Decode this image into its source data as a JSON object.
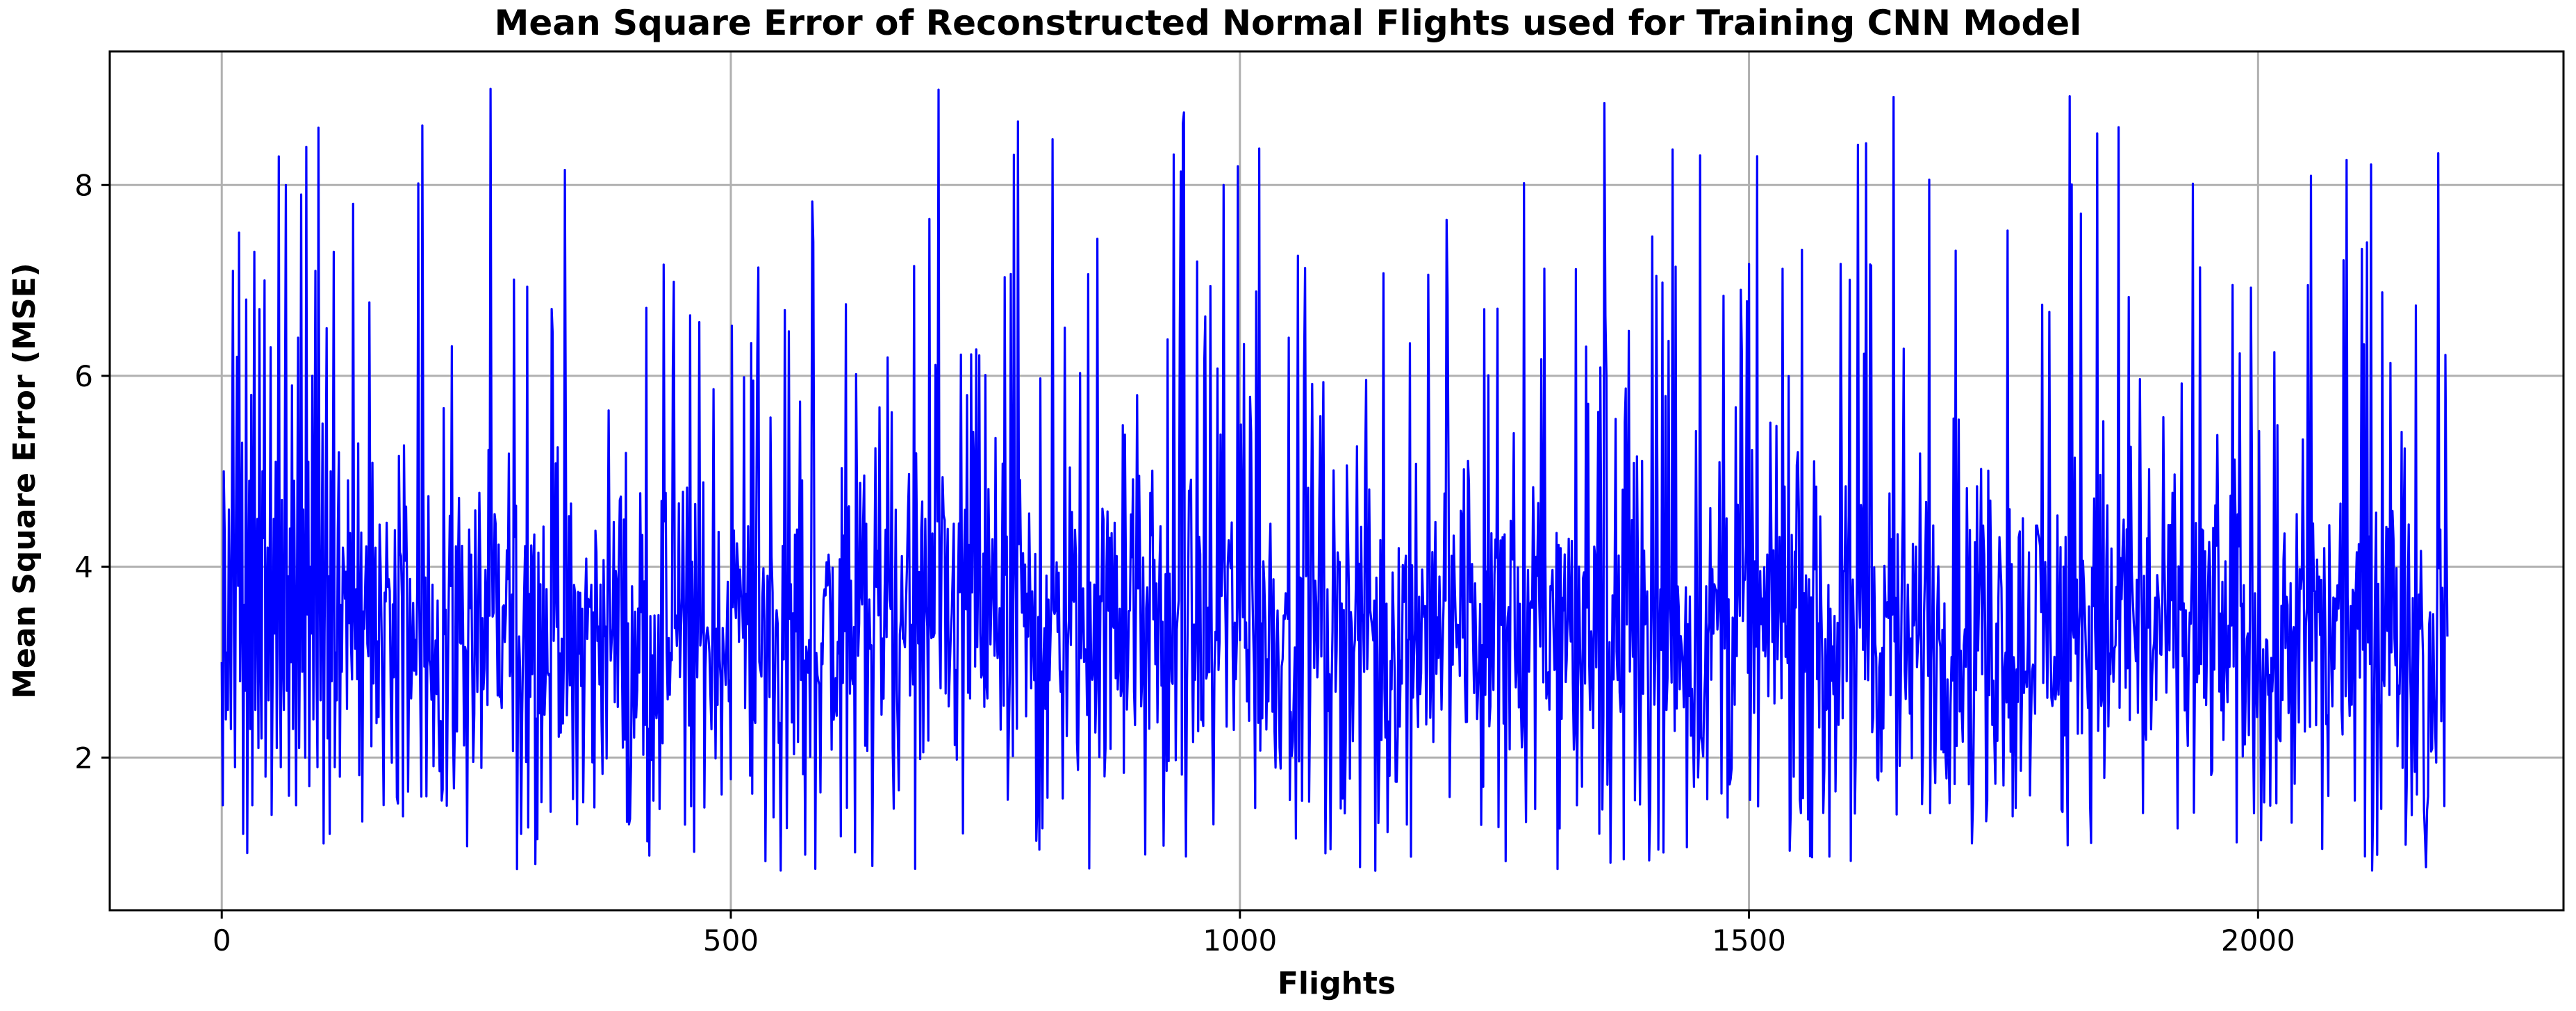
{
  "chart_data": {
    "type": "line",
    "title": "Mean Square Error of Reconstructed Normal Flights used for Training CNN Model",
    "xlabel": "Flights",
    "ylabel": "Mean Square Error (MSE)",
    "xlim": [
      -110,
      2300
    ],
    "ylim": [
      0.4,
      9.4
    ],
    "x_ticks": [
      0,
      500,
      1000,
      1500,
      2000
    ],
    "y_ticks": [
      2,
      4,
      6,
      8
    ],
    "grid": true,
    "n_points": 2187,
    "series": [
      {
        "color": "#0000ff",
        "x_start": 0,
        "x_step": 1,
        "values_approx": [
          3.0,
          1.5,
          5.0,
          4.3,
          2.4,
          3.1,
          2.5,
          4.6,
          3.6,
          2.3,
          4.8,
          7.1,
          3.3,
          1.9,
          4.5,
          6.2,
          3.8,
          7.5,
          2.8,
          4.1,
          5.3,
          1.2,
          3.6,
          2.7,
          6.8,
          1.0,
          3.5,
          4.9,
          2.3,
          5.8,
          1.5,
          4.2,
          7.3,
          2.5,
          3.9,
          4.5,
          2.1,
          6.7,
          3.1,
          2.2,
          5.0,
          4.3,
          7.0,
          1.8,
          3.4,
          4.2,
          2.6,
          3.7,
          6.3,
          1.4,
          2.9,
          4.5,
          3.3,
          5.1,
          2.1,
          4.0,
          8.3,
          3.1,
          1.9,
          4.7,
          3.2,
          2.5,
          5.4,
          8.0,
          2.7,
          3.9,
          1.6,
          4.4,
          3.0,
          5.9,
          2.3,
          4.9,
          3.4,
          1.5,
          4.1,
          6.4,
          2.1,
          3.7,
          7.9,
          2.9,
          4.6,
          3.1,
          2.0,
          8.4,
          3.5,
          5.1,
          1.7,
          4.0,
          3.3,
          6.0,
          2.4,
          4.5,
          7.1,
          3.0,
          1.9,
          8.6,
          4.2,
          2.6,
          3.8,
          5.5,
          1.1,
          3.3,
          4.7,
          6.5,
          2.2,
          3.9,
          1.2,
          5.0,
          2.8,
          4.3,
          7.3,
          1.9,
          3.1,
          2.6,
          4.4,
          5.2,
          1.8,
          3.6,
          2.9,
          4.2
        ]
      }
    ],
    "annotations": []
  }
}
